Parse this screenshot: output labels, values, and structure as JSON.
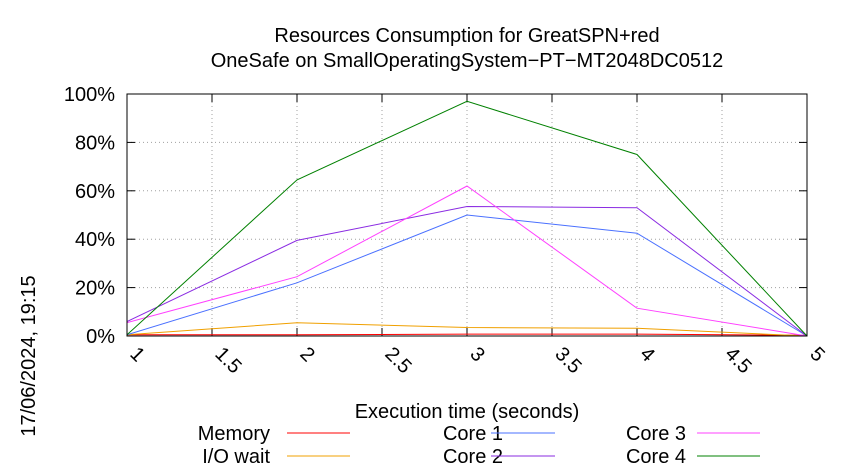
{
  "chart_data": {
    "type": "line",
    "title": [
      "Resources Consumption for GreatSPN+red",
      "OneSafe on SmallOperatingSystem−PT−MT2048DC0512"
    ],
    "timestamp": "17/06/2024, 19:15",
    "xlabel": "Execution time (seconds)",
    "ylabel": "",
    "xlim": [
      1,
      5
    ],
    "ylim": [
      0,
      100
    ],
    "x_ticks": [
      "1",
      "1.5",
      "2",
      "2.5",
      "3",
      "3.5",
      "4",
      "4.5",
      "5"
    ],
    "y_ticks": [
      "0%",
      "20%",
      "40%",
      "60%",
      "80%",
      "100%"
    ],
    "grid": true,
    "legend_position": "bottom",
    "x": [
      1,
      2,
      3,
      4,
      5
    ],
    "series": [
      {
        "name": "Memory",
        "color": "#ff0000",
        "values": [
          0.5,
          0.5,
          0.8,
          0.8,
          0.3
        ]
      },
      {
        "name": "I/O wait",
        "color": "#f0a000",
        "values": [
          0.5,
          5.5,
          3.5,
          3.2,
          0
        ]
      },
      {
        "name": "Core 1",
        "color": "#4a70ff",
        "values": [
          0.5,
          22,
          50,
          42.5,
          0
        ]
      },
      {
        "name": "Core 2",
        "color": "#8a2be2",
        "values": [
          6,
          39.5,
          53.5,
          53,
          0
        ]
      },
      {
        "name": "Core 3",
        "color": "#ff40ff",
        "values": [
          5.5,
          24.5,
          62,
          11.5,
          0
        ]
      },
      {
        "name": "Core 4",
        "color": "#008000",
        "values": [
          0.5,
          64.5,
          97,
          75,
          0
        ]
      }
    ]
  }
}
